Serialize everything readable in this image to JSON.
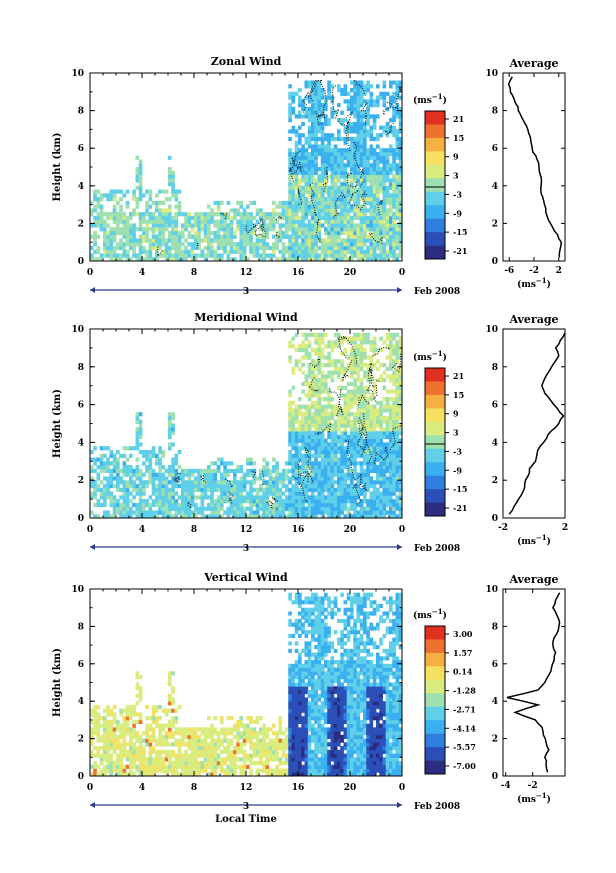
{
  "chart_data": [
    {
      "type": "heatmap",
      "title": "Zonal Wind",
      "ylabel": "Height (km)",
      "xlabel": "",
      "x_ticks": [
        "0",
        "4",
        "8",
        "12",
        "16",
        "20",
        "0"
      ],
      "y_ticks": [
        "0",
        "2",
        "4",
        "6",
        "8",
        "10"
      ],
      "day_label": "3",
      "date_label": "Feb 2008",
      "unit_label": "(ms⁻¹)",
      "colorbar_ticks": [
        "21",
        "15",
        "9",
        "3",
        "-3",
        "-9",
        "-15",
        "-21"
      ],
      "xlim": [
        0,
        24
      ],
      "ylim": [
        0,
        10
      ],
      "contour_zero_color": "#000000",
      "average_profile": {
        "title": "Average",
        "xlabel": "(ms⁻¹)",
        "x_ticks": [
          "-6",
          "-2",
          "2"
        ],
        "y_ticks": [
          "0",
          "2",
          "4",
          "6",
          "8",
          "10"
        ],
        "xlim": [
          -7,
          3
        ],
        "height": [
          0.2,
          0.6,
          1.0,
          1.4,
          1.8,
          2.2,
          2.6,
          3.0,
          3.4,
          3.8,
          4.2,
          4.6,
          5.0,
          5.4,
          5.8,
          6.2,
          6.6,
          7.0,
          7.4,
          7.8,
          8.2,
          8.6,
          9.0,
          9.4,
          9.8
        ],
        "values": [
          2.1,
          2.2,
          2.4,
          1.8,
          1.0,
          0.3,
          -0.1,
          -0.3,
          -0.6,
          -0.9,
          -0.8,
          -1.0,
          -1.2,
          -1.5,
          -2.2,
          -2.4,
          -2.6,
          -3.0,
          -3.6,
          -4.2,
          -4.6,
          -5.2,
          -5.8,
          -6.1,
          -5.5
        ]
      }
    },
    {
      "type": "heatmap",
      "title": "Meridional Wind",
      "ylabel": "Height (km)",
      "xlabel": "",
      "x_ticks": [
        "0",
        "4",
        "8",
        "12",
        "16",
        "20",
        "0"
      ],
      "y_ticks": [
        "0",
        "2",
        "4",
        "6",
        "8",
        "10"
      ],
      "day_label": "3",
      "date_label": "Feb 2008",
      "unit_label": "(ms⁻¹)",
      "colorbar_ticks": [
        "21",
        "15",
        "9",
        "3",
        "-3",
        "-9",
        "-15",
        "-21"
      ],
      "xlim": [
        0,
        24
      ],
      "ylim": [
        0,
        10
      ],
      "contour_zero_color": "#000000",
      "average_profile": {
        "title": "Average",
        "xlabel": "(ms⁻¹)",
        "x_ticks": [
          "-2",
          "2"
        ],
        "y_ticks": [
          "0",
          "2",
          "4",
          "6",
          "8",
          "10"
        ],
        "xlim": [
          -2,
          2
        ],
        "height": [
          0.2,
          0.6,
          1.0,
          1.4,
          1.8,
          2.2,
          2.6,
          3.0,
          3.4,
          3.8,
          4.2,
          4.6,
          5.0,
          5.4,
          5.8,
          6.2,
          6.6,
          7.0,
          7.4,
          7.8,
          8.2,
          8.6,
          9.0,
          9.4,
          9.8
        ],
        "values": [
          -1.6,
          -1.3,
          -1.0,
          -0.7,
          -0.6,
          -0.4,
          -0.3,
          0.1,
          0.2,
          0.4,
          0.8,
          1.1,
          1.6,
          1.9,
          1.5,
          1.1,
          0.7,
          0.5,
          0.7,
          1.0,
          1.3,
          1.6,
          1.4,
          1.7,
          2.0
        ]
      }
    },
    {
      "type": "heatmap",
      "title": "Vertical Wind",
      "ylabel": "Height (km)",
      "xlabel": "Local Time",
      "x_ticks": [
        "0",
        "4",
        "8",
        "12",
        "16",
        "20",
        "0"
      ],
      "y_ticks": [
        "0",
        "2",
        "4",
        "6",
        "8",
        "10"
      ],
      "day_label": "3",
      "date_label": "Feb 2008",
      "unit_label": "(ms⁻¹)",
      "colorbar_ticks": [
        "3.00",
        "1.57",
        "0.14",
        "-1.28",
        "-2.71",
        "-4.14",
        "-5.57",
        "-7.00"
      ],
      "xlim": [
        0,
        24
      ],
      "ylim": [
        0,
        10
      ],
      "average_profile": {
        "title": "Average",
        "xlabel": "(ms⁻¹)",
        "x_ticks": [
          "-4",
          "-2"
        ],
        "y_ticks": [
          "0",
          "2",
          "4",
          "6",
          "8",
          "10"
        ],
        "xlim": [
          -4.2,
          0.4
        ],
        "height": [
          0.2,
          0.6,
          1.0,
          1.4,
          1.8,
          2.2,
          2.6,
          3.0,
          3.4,
          3.8,
          4.2,
          4.6,
          5.0,
          5.4,
          5.8,
          6.2,
          6.6,
          7.0,
          7.4,
          7.8,
          8.2,
          8.6,
          9.0,
          9.4,
          9.8
        ],
        "values": [
          -0.9,
          -1.0,
          -1.1,
          -0.8,
          -1.0,
          -1.2,
          -1.3,
          -1.8,
          -3.3,
          -1.6,
          -3.9,
          -1.6,
          -1.1,
          -0.8,
          -0.6,
          -0.4,
          -0.3,
          -0.5,
          -0.4,
          -0.1,
          0.0,
          -0.2,
          -0.5,
          -0.3,
          0.0
        ]
      }
    }
  ],
  "colorscale": [
    "#2a2d80",
    "#2b4fb8",
    "#2f7fe0",
    "#3bb0f0",
    "#5fd0e8",
    "#9fe0b0",
    "#d8ec80",
    "#f6e060",
    "#f6b040",
    "#f07030",
    "#e03020"
  ]
}
